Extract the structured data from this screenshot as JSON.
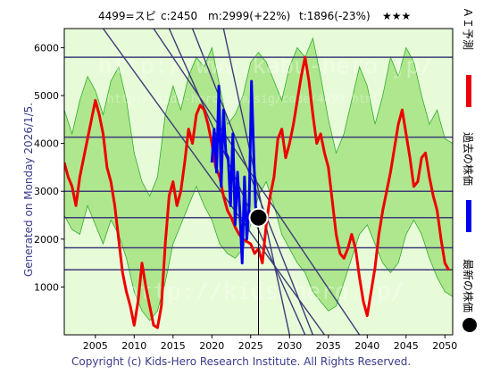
{
  "header": {
    "code": "4499=スピ",
    "current": "c:2450",
    "mid": "m:2999(+22%)",
    "target": "t:1896(-23%)",
    "stars": "★★★"
  },
  "generated": "Generated on Monday 2026/1/5.",
  "copyright": "Copyright (c) Kids-Hero Research Institute. All Rights Reserved.",
  "legend": {
    "ai_forecast": "ＡＩ予測",
    "past_price": "過去の株価",
    "latest_price": "最新の株価"
  },
  "watermarks": {
    "line1": "http://www.kabu-hero.jp/",
    "line2": "http://kids-hero.com/sig/code/4499.html",
    "line3": "http://kids-hero.jp/"
  },
  "colors": {
    "background": "#ffffff",
    "plot_bg_light": "#e8fbd8",
    "plot_bg_green": "#a8e486",
    "thin_green": "#2fae2f",
    "ai_red": "#ee0000",
    "past_blue": "#0000ee",
    "hline": "#3c3c78",
    "diag": "#3c3c78",
    "marker": "#000000"
  },
  "chart_data": {
    "type": "line",
    "x_ticks": [
      2005,
      2010,
      2015,
      2020,
      2025,
      2030,
      2035,
      2040,
      2045,
      2050
    ],
    "y_ticks": [
      1000,
      2000,
      3000,
      4000,
      5000,
      6000
    ],
    "xlim": [
      2001,
      2051
    ],
    "ylim": [
      0,
      6400
    ],
    "horizontal_levels": [
      5800,
      4130,
      3000,
      2450,
      1820,
      1360
    ],
    "latest_point": {
      "x": 2026.0,
      "y": 2450
    },
    "current_date_x": 2026.0,
    "series": [
      {
        "role": "ai_forecast",
        "x": [
          2001.0,
          2001.5,
          2002.0,
          2002.5,
          2003.0,
          2003.5,
          2004.0,
          2004.5,
          2005.0,
          2005.5,
          2006.0,
          2006.5,
          2007.0,
          2007.5,
          2008.0,
          2008.5,
          2009.0,
          2009.5,
          2010.0,
          2010.5,
          2011.0,
          2011.5,
          2012.0,
          2012.5,
          2013.0,
          2013.5,
          2014.0,
          2014.5,
          2015.0,
          2015.5,
          2016.0,
          2016.5,
          2017.0,
          2017.5,
          2018.0,
          2018.5,
          2019.0,
          2019.5,
          2020.0,
          2020.5,
          2021.0,
          2021.5,
          2022.0,
          2022.5,
          2023.0,
          2023.5,
          2024.0,
          2024.5,
          2025.0,
          2025.5,
          2026.0,
          2026.5,
          2027.0,
          2027.5,
          2028.0,
          2028.5,
          2029.0,
          2029.5,
          2030.0,
          2030.5,
          2031.0,
          2031.5,
          2032.0,
          2032.5,
          2033.0,
          2033.5,
          2034.0,
          2034.5,
          2035.0,
          2035.5,
          2036.0,
          2036.5,
          2037.0,
          2037.5,
          2038.0,
          2038.5,
          2039.0,
          2039.5,
          2040.0,
          2040.5,
          2041.0,
          2041.5,
          2042.0,
          2042.5,
          2043.0,
          2043.5,
          2044.0,
          2044.5,
          2045.0,
          2045.5,
          2046.0,
          2046.5,
          2047.0,
          2047.5,
          2048.0,
          2048.5,
          2049.0,
          2049.5,
          2050.0,
          2050.5
        ],
        "values": [
          3600,
          3300,
          3100,
          2700,
          3300,
          3700,
          4100,
          4500,
          4900,
          4600,
          4200,
          3500,
          3200,
          2700,
          2000,
          1300,
          900,
          600,
          200,
          700,
          1500,
          1000,
          600,
          200,
          150,
          600,
          1900,
          2900,
          3200,
          2700,
          3000,
          3600,
          4300,
          4000,
          4600,
          4800,
          4700,
          4400,
          4000,
          3500,
          3300,
          2900,
          2600,
          2450,
          2250,
          2100,
          2000,
          1950,
          1900,
          1700,
          1800,
          1500,
          2300,
          2900,
          3300,
          4100,
          4300,
          3700,
          4000,
          4400,
          4900,
          5400,
          5800,
          5300,
          4600,
          4000,
          4200,
          3800,
          3500,
          2800,
          2100,
          1700,
          1600,
          1800,
          2100,
          1800,
          1200,
          700,
          400,
          900,
          1400,
          2100,
          2600,
          3000,
          3400,
          3900,
          4400,
          4700,
          4200,
          3700,
          3100,
          3200,
          3700,
          3800,
          3300,
          2900,
          2600,
          2000,
          1500,
          1350
        ]
      },
      {
        "role": "past_price",
        "x": [
          2020.0,
          2020.3,
          2020.6,
          2020.9,
          2021.2,
          2021.5,
          2021.8,
          2022.1,
          2022.4,
          2022.7,
          2023.0,
          2023.3,
          2023.6,
          2023.9,
          2024.2,
          2024.5,
          2024.8,
          2025.1,
          2025.4,
          2025.7,
          2026.0
        ],
        "values": [
          3600,
          4300,
          3400,
          5200,
          3100,
          4700,
          3800,
          3700,
          2700,
          4200,
          2300,
          3400,
          2600,
          1500,
          3300,
          2000,
          2700,
          5300,
          3700,
          2400,
          2450
        ]
      }
    ],
    "diagonal_lines": [
      {
        "x1": 2006.0,
        "y1": 6400,
        "x2": 2034.5,
        "y2": 0
      },
      {
        "x1": 2012.5,
        "y1": 6400,
        "x2": 2039.0,
        "y2": 0
      },
      {
        "x1": 2014.5,
        "y1": 6400,
        "x2": 2032.0,
        "y2": 0
      },
      {
        "x1": 2017.5,
        "y1": 6400,
        "x2": 2033.0,
        "y2": 0
      },
      {
        "x1": 2021.5,
        "y1": 6400,
        "x2": 2030.0,
        "y2": 0
      }
    ],
    "green_band_top": [
      6400,
      6400,
      6400,
      6300,
      6400,
      6400,
      6400,
      6400,
      6400,
      6400,
      6400,
      6400,
      6400,
      6400,
      6400,
      6400,
      6400,
      6400,
      6400,
      6400,
      6400,
      6400,
      6400,
      6400,
      6400,
      6400,
      6400,
      6400,
      6400,
      6400,
      6400,
      6400,
      6400,
      6400,
      6400,
      6400,
      6400,
      6400,
      6400,
      6400,
      6400,
      6400,
      6400,
      6400,
      6400,
      6400,
      6400,
      6400,
      6400,
      6400,
      6400
    ],
    "green_band_upper": [
      4700,
      4200,
      4900,
      5400,
      5100,
      4600,
      5300,
      5600,
      4900,
      3800,
      3200,
      2900,
      3300,
      4600,
      5200,
      4700,
      5400,
      5800,
      5600,
      6000,
      5200,
      4400,
      4600,
      5000,
      5700,
      5900,
      5700,
      5300,
      4900,
      5600,
      6000,
      5800,
      6200,
      5400,
      4500,
      3800,
      4200,
      4900,
      5600,
      5200,
      4400,
      5000,
      5800,
      5400,
      6000,
      5700,
      5000,
      4400,
      4700,
      4100,
      4000
    ],
    "green_band_lower": [
      2500,
      2200,
      2100,
      2700,
      2300,
      1900,
      2400,
      2100,
      1600,
      900,
      500,
      300,
      500,
      1100,
      1900,
      2300,
      2700,
      3100,
      2700,
      2400,
      1900,
      1700,
      1600,
      1800,
      2300,
      2900,
      3200,
      2700,
      2100,
      1800,
      1500,
      1300,
      900,
      700,
      500,
      600,
      1100,
      1600,
      2100,
      2300,
      1900,
      1500,
      1300,
      1500,
      2100,
      2400,
      2100,
      1600,
      1200,
      900,
      800
    ],
    "green_band_x": [
      2001,
      2002,
      2003,
      2004,
      2005,
      2006,
      2007,
      2008,
      2009,
      2010,
      2011,
      2012,
      2013,
      2014,
      2015,
      2016,
      2017,
      2018,
      2019,
      2020,
      2021,
      2022,
      2023,
      2024,
      2025,
      2026,
      2027,
      2028,
      2029,
      2030,
      2031,
      2032,
      2033,
      2034,
      2035,
      2036,
      2037,
      2038,
      2039,
      2040,
      2041,
      2042,
      2043,
      2044,
      2045,
      2046,
      2047,
      2048,
      2049,
      2050,
      2051
    ]
  }
}
